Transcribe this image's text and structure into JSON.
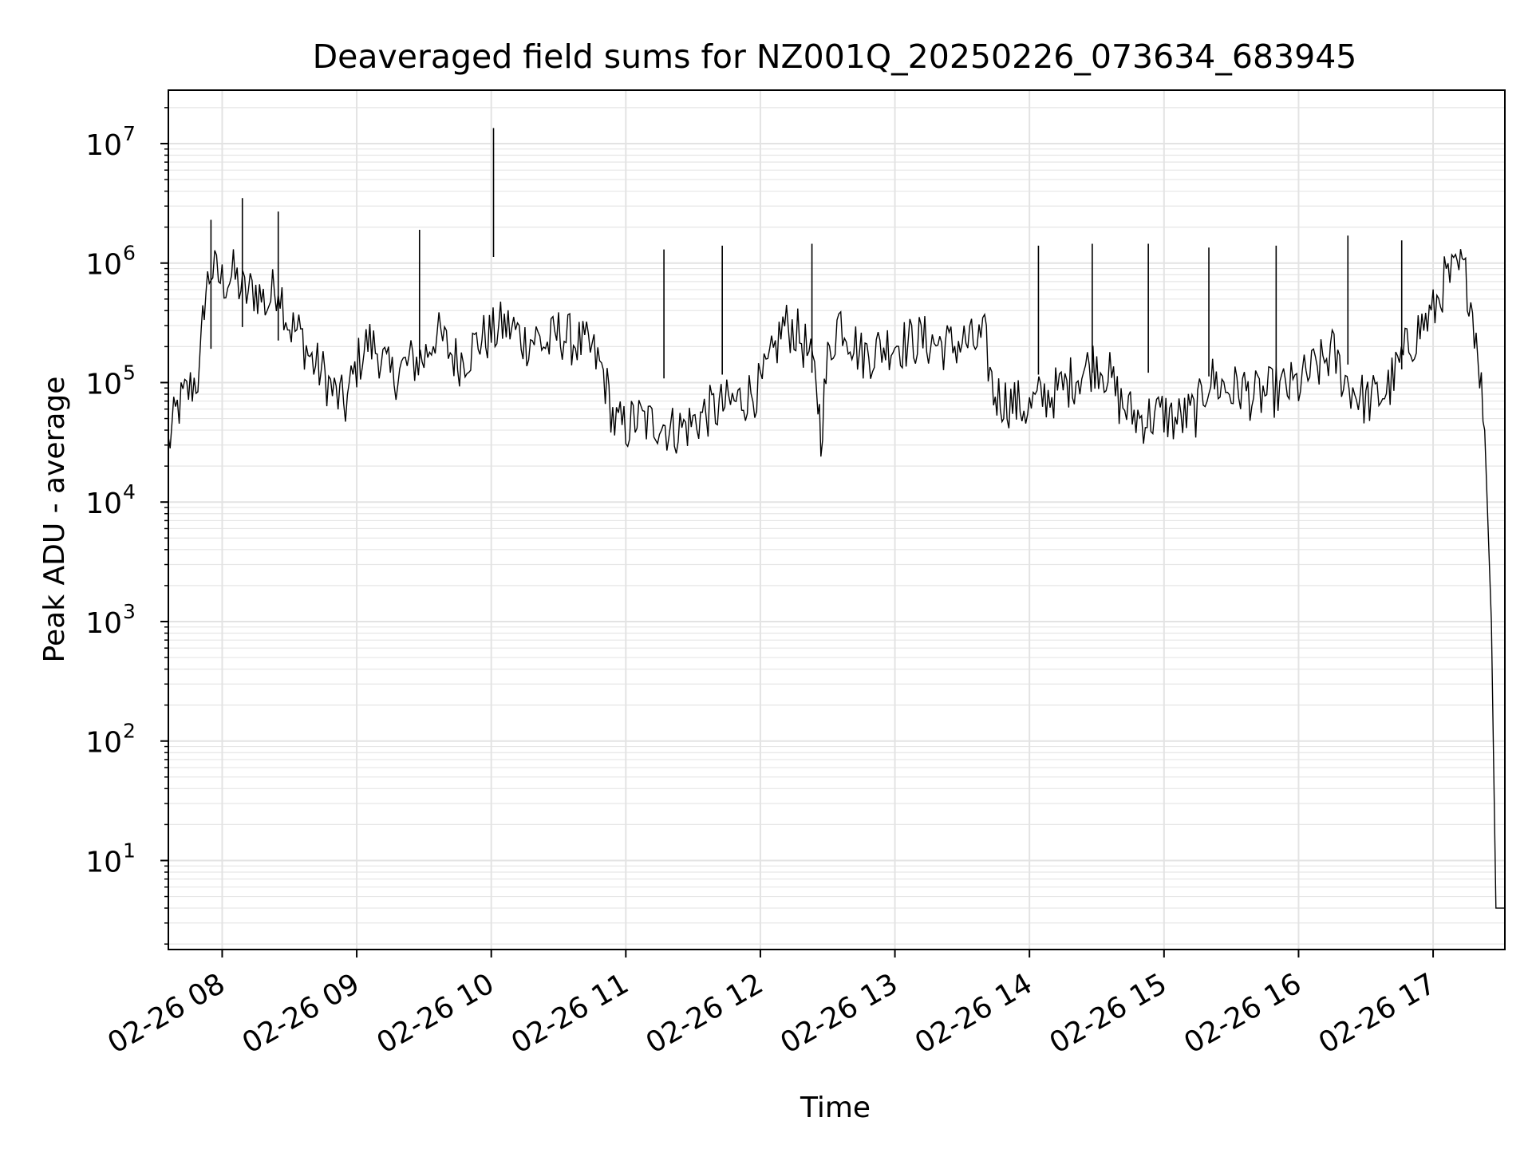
{
  "chart_data": {
    "type": "line",
    "title": "Deaveraged field sums for NZ001Q_20250226_073634_683945",
    "xlabel": "Time",
    "ylabel": "Peak ADU - average",
    "yscale": "log",
    "ylim": [
      1.8,
      28000000
    ],
    "xlim": [
      "02-26 07:36",
      "02-26 17:32"
    ],
    "grid": true,
    "legend": "none",
    "x_ticks": [
      "02-26 08",
      "02-26 09",
      "02-26 10",
      "02-26 11",
      "02-26 12",
      "02-26 13",
      "02-26 14",
      "02-26 15",
      "02-26 16",
      "02-26 17"
    ],
    "y_ticks": [
      {
        "value": 10,
        "base": "10",
        "exp": "1"
      },
      {
        "value": 100,
        "base": "10",
        "exp": "2"
      },
      {
        "value": 1000,
        "base": "10",
        "exp": "3"
      },
      {
        "value": 10000,
        "base": "10",
        "exp": "4"
      },
      {
        "value": 100000,
        "base": "10",
        "exp": "5"
      },
      {
        "value": 1000000,
        "base": "10",
        "exp": "6"
      },
      {
        "value": 10000000,
        "base": "10",
        "exp": "7"
      }
    ],
    "series": [
      {
        "color": "#000000",
        "points": [
          [
            "02-26 07:36",
            30000
          ],
          [
            "02-26 07:40",
            60000
          ],
          [
            "02-26 07:45",
            85000
          ],
          [
            "02-26 07:50",
            120000
          ],
          [
            "02-26 07:52",
            500000
          ],
          [
            "02-26 07:55",
            900000
          ],
          [
            "02-26 08:00",
            700000
          ],
          [
            "02-26 08:05",
            800000
          ],
          [
            "02-26 08:10",
            550000
          ],
          [
            "02-26 08:15",
            600000
          ],
          [
            "02-26 08:20",
            450000
          ],
          [
            "02-26 08:25",
            700000
          ],
          [
            "02-26 08:30",
            300000
          ],
          [
            "02-26 08:35",
            250000
          ],
          [
            "02-26 08:40",
            150000
          ],
          [
            "02-26 08:45",
            120000
          ],
          [
            "02-26 08:50",
            80000
          ],
          [
            "02-26 08:55",
            65000
          ],
          [
            "02-26 09:00",
            140000
          ],
          [
            "02-26 09:05",
            220000
          ],
          [
            "02-26 09:10",
            180000
          ],
          [
            "02-26 09:15",
            110000
          ],
          [
            "02-26 09:20",
            130000
          ],
          [
            "02-26 09:25",
            150000
          ],
          [
            "02-26 09:30",
            160000
          ],
          [
            "02-26 09:35",
            260000
          ],
          [
            "02-26 09:40",
            200000
          ],
          [
            "02-26 09:45",
            150000
          ],
          [
            "02-26 09:50",
            180000
          ],
          [
            "02-26 09:55",
            230000
          ],
          [
            "02-26 10:00",
            250000
          ],
          [
            "02-26 10:05",
            300000
          ],
          [
            "02-26 10:10",
            280000
          ],
          [
            "02-26 10:15",
            220000
          ],
          [
            "02-26 10:20",
            240000
          ],
          [
            "02-26 10:25",
            200000
          ],
          [
            "02-26 10:30",
            260000
          ],
          [
            "02-26 10:35",
            230000
          ],
          [
            "02-26 10:40",
            210000
          ],
          [
            "02-26 10:45",
            180000
          ],
          [
            "02-26 10:50",
            120000
          ],
          [
            "02-26 10:55",
            45000
          ],
          [
            "02-26 11:00",
            42000
          ],
          [
            "02-26 11:05",
            50000
          ],
          [
            "02-26 11:10",
            45000
          ],
          [
            "02-26 11:15",
            48000
          ],
          [
            "02-26 11:20",
            40000
          ],
          [
            "02-26 11:25",
            42000
          ],
          [
            "02-26 11:30",
            46000
          ],
          [
            "02-26 11:35",
            55000
          ],
          [
            "02-26 11:40",
            60000
          ],
          [
            "02-26 11:45",
            65000
          ],
          [
            "02-26 11:50",
            70000
          ],
          [
            "02-26 11:55",
            80000
          ],
          [
            "02-26 12:00",
            90000
          ],
          [
            "02-26 12:05",
            150000
          ],
          [
            "02-26 12:10",
            300000
          ],
          [
            "02-26 12:15",
            280000
          ],
          [
            "02-26 12:20",
            200000
          ],
          [
            "02-26 12:25",
            100000
          ],
          [
            "02-26 12:27",
            38000
          ],
          [
            "02-26 12:30",
            150000
          ],
          [
            "02-26 12:35",
            350000
          ],
          [
            "02-26 12:40",
            250000
          ],
          [
            "02-26 12:45",
            170000
          ],
          [
            "02-26 12:50",
            180000
          ],
          [
            "02-26 12:55",
            200000
          ],
          [
            "02-26 13:00",
            220000
          ],
          [
            "02-26 13:05",
            210000
          ],
          [
            "02-26 13:10",
            230000
          ],
          [
            "02-26 13:15",
            220000
          ],
          [
            "02-26 13:20",
            210000
          ],
          [
            "02-26 13:25",
            200000
          ],
          [
            "02-26 13:30",
            220000
          ],
          [
            "02-26 13:35",
            210000
          ],
          [
            "02-26 13:40",
            230000
          ],
          [
            "02-26 13:44",
            80000
          ],
          [
            "02-26 13:50",
            70000
          ],
          [
            "02-26 13:55",
            65000
          ],
          [
            "02-26 14:00",
            60000
          ],
          [
            "02-26 14:05",
            75000
          ],
          [
            "02-26 14:10",
            80000
          ],
          [
            "02-26 14:15",
            90000
          ],
          [
            "02-26 14:20",
            110000
          ],
          [
            "02-26 14:25",
            130000
          ],
          [
            "02-26 14:30",
            150000
          ],
          [
            "02-26 14:35",
            120000
          ],
          [
            "02-26 14:40",
            70000
          ],
          [
            "02-26 14:45",
            55000
          ],
          [
            "02-26 14:50",
            50000
          ],
          [
            "02-26 14:55",
            52000
          ],
          [
            "02-26 15:00",
            55000
          ],
          [
            "02-26 15:05",
            48000
          ],
          [
            "02-26 15:10",
            52000
          ],
          [
            "02-26 15:15",
            58000
          ],
          [
            "02-26 15:20",
            110000
          ],
          [
            "02-26 15:25",
            95000
          ],
          [
            "02-26 15:30",
            85000
          ],
          [
            "02-26 15:35",
            90000
          ],
          [
            "02-26 15:40",
            75000
          ],
          [
            "02-26 15:45",
            80000
          ],
          [
            "02-26 15:50",
            85000
          ],
          [
            "02-26 15:55",
            90000
          ],
          [
            "02-26 16:00",
            95000
          ],
          [
            "02-26 16:05",
            120000
          ],
          [
            "02-26 16:10",
            140000
          ],
          [
            "02-26 16:15",
            180000
          ],
          [
            "02-26 16:20",
            110000
          ],
          [
            "02-26 16:25",
            85000
          ],
          [
            "02-26 16:30",
            70000
          ],
          [
            "02-26 16:35",
            75000
          ],
          [
            "02-26 16:40",
            90000
          ],
          [
            "02-26 16:45",
            140000
          ],
          [
            "02-26 16:50",
            220000
          ],
          [
            "02-26 16:55",
            300000
          ],
          [
            "02-26 17:00",
            380000
          ],
          [
            "02-26 17:05",
            700000
          ],
          [
            "02-26 17:10",
            800000
          ],
          [
            "02-26 17:13",
            900000
          ],
          [
            "02-26 17:16",
            600000
          ],
          [
            "02-26 17:20",
            200000
          ],
          [
            "02-26 17:23",
            40000
          ],
          [
            "02-26 17:26",
            1000
          ],
          [
            "02-26 17:28",
            4
          ],
          [
            "02-26 17:32",
            4
          ]
        ]
      }
    ],
    "spikes": [
      [
        "02-26 07:55",
        2300000
      ],
      [
        "02-26 08:09",
        3500000
      ],
      [
        "02-26 08:25",
        2700000
      ],
      [
        "02-26 09:28",
        1900000
      ],
      [
        "02-26 10:01",
        13500000
      ],
      [
        "02-26 11:17",
        1300000
      ],
      [
        "02-26 11:43",
        1400000
      ],
      [
        "02-26 12:23",
        1450000
      ],
      [
        "02-26 14:04",
        1400000
      ],
      [
        "02-26 14:28",
        1450000
      ],
      [
        "02-26 14:53",
        1450000
      ],
      [
        "02-26 15:20",
        1350000
      ],
      [
        "02-26 15:50",
        1400000
      ],
      [
        "02-26 16:22",
        1700000
      ],
      [
        "02-26 16:46",
        1550000
      ]
    ]
  }
}
